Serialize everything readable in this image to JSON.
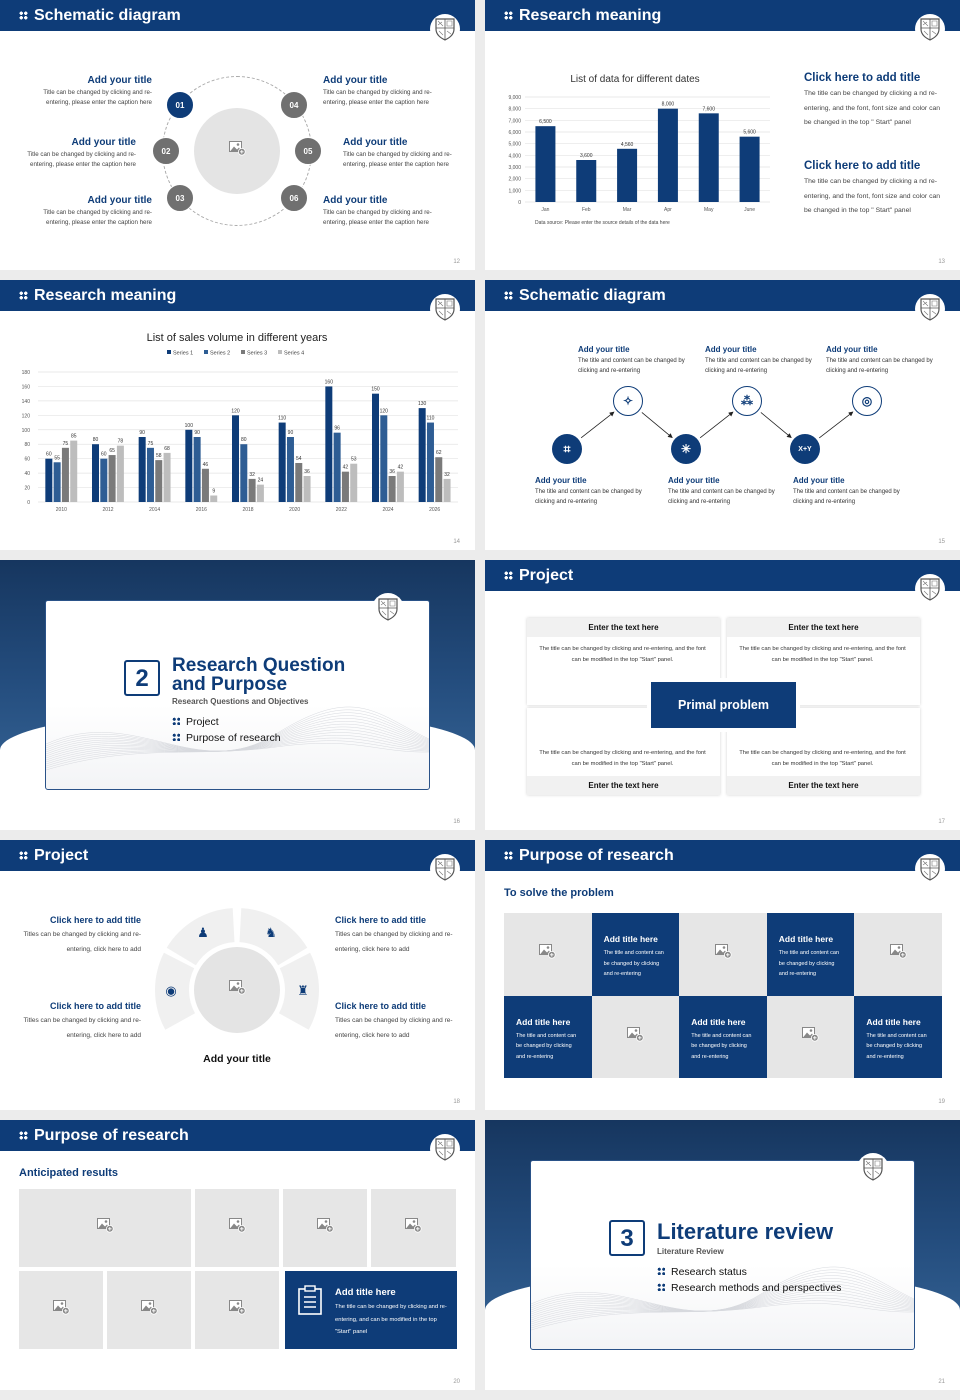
{
  "colors": {
    "primary": "#0e3c78",
    "series": [
      "#0e3c78",
      "#2e5d94",
      "#7a7a7a",
      "#bdbdbd"
    ],
    "number_circle_gray": "#707070",
    "placeholder": "#e6e6e6"
  },
  "slides": {
    "s12": {
      "header": "Schematic diagram",
      "page": "12",
      "items": [
        {
          "num": "01",
          "title": "Add your title",
          "text": "Title can be changed by clicking and re-entering, please enter the caption here"
        },
        {
          "num": "02",
          "title": "Add your title",
          "text": "Title can be changed by clicking and re-entering, please enter the caption here"
        },
        {
          "num": "03",
          "title": "Add your title",
          "text": "Title can be changed by clicking and re-entering, please enter the caption here"
        },
        {
          "num": "04",
          "title": "Add your title",
          "text": "Title can be changed by clicking and re-entering, please enter the caption here"
        },
        {
          "num": "05",
          "title": "Add your title",
          "text": "Title can be changed by clicking and re-entering, please enter the caption here"
        },
        {
          "num": "06",
          "title": "Add your title",
          "text": "Title can be changed by clicking and re-entering, please enter the caption here"
        }
      ]
    },
    "s13": {
      "header": "Research meaning",
      "page": "13",
      "blocks": [
        {
          "title": "Click here to add title",
          "text": "The title can be changed by clicking a nd re-entering, and the font, font size and color can be changed in the top \" Start\" panel"
        },
        {
          "title": "Click here to add title",
          "text": "The title can be changed by clicking a nd re-entering, and the font, font size and color can be changed in the top \" Start\" panel"
        }
      ]
    },
    "s14": {
      "header": "Research meaning",
      "page": "14"
    },
    "s15": {
      "header": "Schematic diagram",
      "page": "15",
      "xy_label": "X+Y",
      "steps": [
        {
          "title": "Add your title",
          "text": "The title and content can be changed by clicking and re-entering",
          "icon": "network-nodes-icon"
        },
        {
          "title": "Add your title",
          "text": "The title and content can be changed by clicking and re-entering",
          "icon": "sparkles-icon"
        },
        {
          "title": "Add your title",
          "text": "The title and content can be changed by clicking and re-entering",
          "icon": "hub-icon"
        },
        {
          "title": "Add your title",
          "text": "The title and content can be changed by clicking and re-entering",
          "icon": "connections-icon"
        },
        {
          "title": "Add your title",
          "text": "The title and content can be changed by clicking and re-entering",
          "icon": "formula-icon"
        },
        {
          "title": "Add your title",
          "text": "The title and content can be changed by clicking and re-entering",
          "icon": "target-icon"
        }
      ]
    },
    "s16": {
      "number": "2",
      "title": "Research Question and Purpose",
      "subtitle": "Research Questions and Objectives",
      "items": [
        "Project",
        "Purpose of research"
      ],
      "page": "16"
    },
    "s17": {
      "header": "Project",
      "page": "17",
      "center": "Primal problem",
      "boxes": [
        {
          "title": "Enter the text here",
          "text": "The title can be changed by clicking and re-entering, and the font can be modified in the top \"Start\" panel."
        },
        {
          "title": "Enter the text here",
          "text": "The title can be changed by clicking and re-entering, and the font can be modified in the top \"Start\" panel."
        },
        {
          "title": "Enter the text here",
          "text": "The title can be changed by clicking and re-entering, and the font can be modified in the top \"Start\" panel."
        },
        {
          "title": "Enter the text here",
          "text": "The title can be changed by clicking and re-entering, and the font can be modified in the top \"Start\" panel."
        }
      ]
    },
    "s18": {
      "header": "Project",
      "page": "18",
      "center_title": "Add your title",
      "items": [
        {
          "title": "Click here to add title",
          "text": "Titles can be changed by clicking and re-entering, click here to add"
        },
        {
          "title": "Click here to add title",
          "text": "Titles can be changed by clicking and re-entering, click here to add"
        },
        {
          "title": "Click here to add title",
          "text": "Titles can be changed by clicking and re-entering, click here to add"
        },
        {
          "title": "Click here to add title",
          "text": "Titles can be changed by clicking and re-entering, click here to add"
        }
      ],
      "segment_icons": [
        "user-circle-icon",
        "team-icon",
        "teacher-icon",
        "reader-icon"
      ]
    },
    "s19": {
      "header": "Purpose of research",
      "page": "19",
      "subtitle": "To solve the problem",
      "cards": [
        {
          "title": "Add title here",
          "text": "The title and content can be changed by clicking and re-entering"
        },
        {
          "title": "Add title here",
          "text": "The title and content can be changed by clicking and re-entering"
        },
        {
          "title": "Add title here",
          "text": "The title and content can be changed by clicking and re-entering"
        },
        {
          "title": "Add title here",
          "text": "The title and content can be changed by clicking and re-entering"
        },
        {
          "title": "Add title here",
          "text": "The title and content can be changed by clicking and re-entering"
        }
      ]
    },
    "s20": {
      "header": "Purpose of research",
      "page": "20",
      "subtitle": "Anticipated results",
      "card": {
        "title": "Add title here",
        "text": "The title can be changed by clicking and re-entering, and can be modified in the top \"Start\" panel"
      }
    },
    "s21": {
      "number": "3",
      "title": "Literature review",
      "subtitle": "Literature Review",
      "items": [
        "Research status",
        "Research methods and perspectives"
      ],
      "page": "21"
    }
  },
  "chart_data": [
    {
      "type": "bar",
      "title": "List of data for different dates",
      "categories": [
        "Jan",
        "Feb",
        "Mar",
        "Apr",
        "May",
        "June"
      ],
      "values": [
        6500,
        3600,
        4560,
        8000,
        7600,
        5600
      ],
      "value_labels": [
        "6,500",
        "3,600",
        "4,560",
        "8,000",
        "7,600",
        "5,600"
      ],
      "yticks": [
        "0",
        "1,000",
        "2,000",
        "3,000",
        "4,000",
        "5,000",
        "6,000",
        "7,000",
        "8,000",
        "9,000"
      ],
      "ylim": [
        0,
        9000
      ],
      "grid": true,
      "note": "Data source: Please enter the source details of the data here",
      "xlabel": "",
      "ylabel": ""
    },
    {
      "type": "bar",
      "title": "List of sales volume in different years",
      "categories": [
        "2010",
        "2012",
        "2014",
        "2016",
        "2018",
        "2020",
        "2022",
        "2024",
        "2026"
      ],
      "series": [
        {
          "name": "Series 1",
          "values": [
            60,
            80,
            90,
            100,
            120,
            110,
            160,
            150,
            130
          ]
        },
        {
          "name": "Series 2",
          "values": [
            55,
            60,
            75,
            90,
            80,
            90,
            96,
            120,
            110
          ]
        },
        {
          "name": "Series 3",
          "values": [
            75,
            65,
            58,
            46,
            32,
            54,
            42,
            36,
            62
          ]
        },
        {
          "name": "Series 4",
          "values": [
            85,
            78,
            68,
            9,
            24,
            36,
            53,
            42,
            32
          ]
        }
      ],
      "yticks": [
        "0",
        "20",
        "40",
        "60",
        "80",
        "100",
        "120",
        "140",
        "160",
        "180"
      ],
      "ylim": [
        0,
        180
      ],
      "grid": true,
      "legend": "top",
      "xlabel": "",
      "ylabel": ""
    }
  ]
}
